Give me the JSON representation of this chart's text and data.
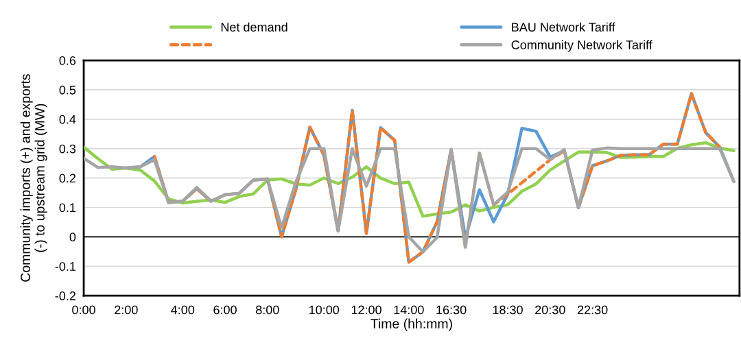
{
  "chart_data": {
    "type": "line",
    "xlabel": "Time (hh:mm)",
    "ylabel": "Community imports (+) and exports\n(-) to upstream grid (MW)",
    "categories": [
      "0:00",
      null,
      null,
      "2:00",
      null,
      null,
      null,
      "4:00",
      null,
      null,
      "6:00",
      null,
      null,
      "8:00",
      null,
      null,
      null,
      "10:00",
      null,
      null,
      "12:00",
      null,
      null,
      "14:00",
      null,
      null,
      "16:30",
      null,
      null,
      null,
      "18:30",
      null,
      null,
      "20:30",
      null,
      null,
      "22:30",
      null,
      null,
      null,
      null,
      null,
      null,
      null,
      null,
      null,
      null
    ],
    "series": [
      {
        "name": "Net demand",
        "color": "#92d050",
        "line_style": "solid",
        "values": [
          0.305,
          0.266,
          0.23,
          0.234,
          0.227,
          0.19,
          0.129,
          0.115,
          0.121,
          0.125,
          0.117,
          0.137,
          0.146,
          0.193,
          0.197,
          0.18,
          0.176,
          0.2,
          0.181,
          0.203,
          0.238,
          0.2,
          0.181,
          0.186,
          0.07,
          0.078,
          0.084,
          0.109,
          0.088,
          0.1,
          0.109,
          0.155,
          0.18,
          0.227,
          0.258,
          0.288,
          0.289,
          0.287,
          0.27,
          0.271,
          0.273,
          0.273,
          0.301,
          0.313,
          0.32,
          0.302,
          0.293
        ]
      },
      {
        "name": "BAU Network Tariff",
        "color": "#5b9bd5",
        "line_style": "solid",
        "values": [
          null,
          null,
          null,
          0.234,
          0.238,
          0.273,
          0.117,
          0.121,
          0.164,
          0.121,
          0.143,
          0.148,
          0.193,
          0.197,
          0.0,
          0.16,
          0.373,
          0.277,
          0.02,
          0.43,
          0.012,
          0.371,
          0.328,
          -0.086,
          -0.051,
          0.051,
          0.297,
          -0.004,
          0.16,
          0.051,
          0.145,
          0.369,
          0.359,
          0.271,
          0.293,
          0.099,
          0.242,
          0.258,
          0.277,
          0.279,
          0.279,
          0.315,
          0.315,
          0.487,
          0.355,
          0.305,
          0.188
        ]
      },
      {
        "color": "#ed7d31",
        "line_style": "dashed",
        "values": [
          null,
          null,
          null,
          null,
          null,
          0.273,
          0.117,
          0.121,
          0.164,
          0.121,
          0.143,
          0.148,
          0.193,
          0.197,
          0.0,
          0.16,
          0.373,
          0.277,
          0.02,
          0.43,
          0.012,
          0.371,
          0.328,
          -0.086,
          -0.051,
          0.051,
          0.297,
          -0.035,
          0.285,
          0.109,
          0.145,
          0.184,
          0.223,
          0.262,
          0.293,
          0.099,
          0.242,
          0.258,
          0.277,
          0.279,
          0.279,
          0.315,
          0.315,
          0.487,
          0.355,
          0.305,
          null
        ]
      },
      {
        "name": "Community Network Tariff",
        "color": "#a5a5a5",
        "line_style": "solid",
        "values": [
          0.267,
          0.236,
          0.238,
          0.234,
          0.238,
          0.262,
          0.117,
          0.121,
          0.168,
          0.121,
          0.143,
          0.148,
          0.193,
          0.197,
          0.031,
          0.185,
          0.3,
          0.3,
          0.02,
          0.3,
          0.172,
          0.3,
          0.3,
          0.0,
          -0.051,
          -0.002,
          0.297,
          -0.035,
          0.285,
          0.109,
          0.152,
          0.3,
          0.3,
          0.263,
          0.297,
          0.099,
          0.295,
          0.302,
          0.3,
          0.3,
          0.3,
          0.3,
          0.3,
          0.3,
          0.3,
          0.3,
          0.188
        ]
      }
    ],
    "ylim": [
      -0.2,
      0.6
    ],
    "yticks": [
      {
        "value": -0.2,
        "label": "-0.2"
      },
      {
        "value": -0.1,
        "label": "-0.1"
      },
      0,
      0.1,
      0.2,
      0.3,
      0.4,
      0.5,
      0.6
    ],
    "ref_lines": [
      {
        "axis": "y",
        "value": 0,
        "color": "#000000"
      }
    ],
    "grid": "y",
    "legend": "top",
    "marker": "none"
  }
}
